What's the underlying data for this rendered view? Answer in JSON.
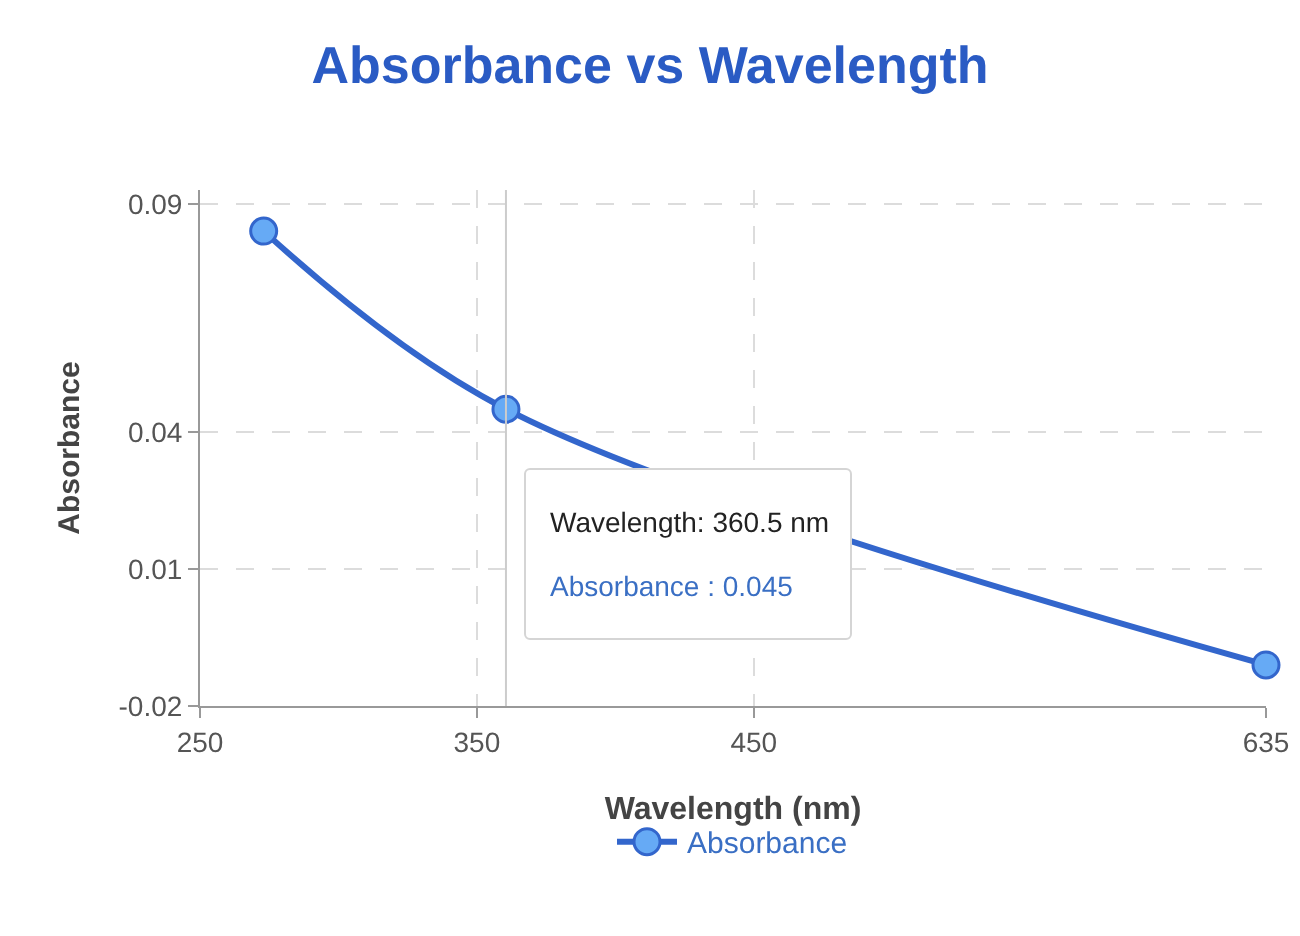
{
  "chart_data": {
    "type": "line",
    "title": "Absorbance vs Wavelength",
    "xlabel": "Wavelength (nm)",
    "ylabel": "Absorbance",
    "x": [
      273,
      360.5,
      635
    ],
    "series": [
      {
        "name": "Absorbance",
        "color": "#3366cc",
        "values": [
          0.084,
          0.045,
          -0.011
        ]
      }
    ],
    "xlim": [
      250,
      635
    ],
    "xticks": [
      250,
      350,
      450,
      635
    ],
    "ylim": [
      -0.02,
      0.093
    ],
    "yticks": [
      -0.02,
      0.01,
      0.04,
      0.09
    ],
    "grid": true,
    "legend": "bottom",
    "marker": "circle",
    "line_style": "solid",
    "ref_lines": [
      {
        "axis": "x",
        "value": 360.5,
        "label": null,
        "color": "#cccccc"
      }
    ],
    "annotations": [
      "Wavelength: 360.5 nm",
      "Absorbance : 0.045"
    ]
  }
}
